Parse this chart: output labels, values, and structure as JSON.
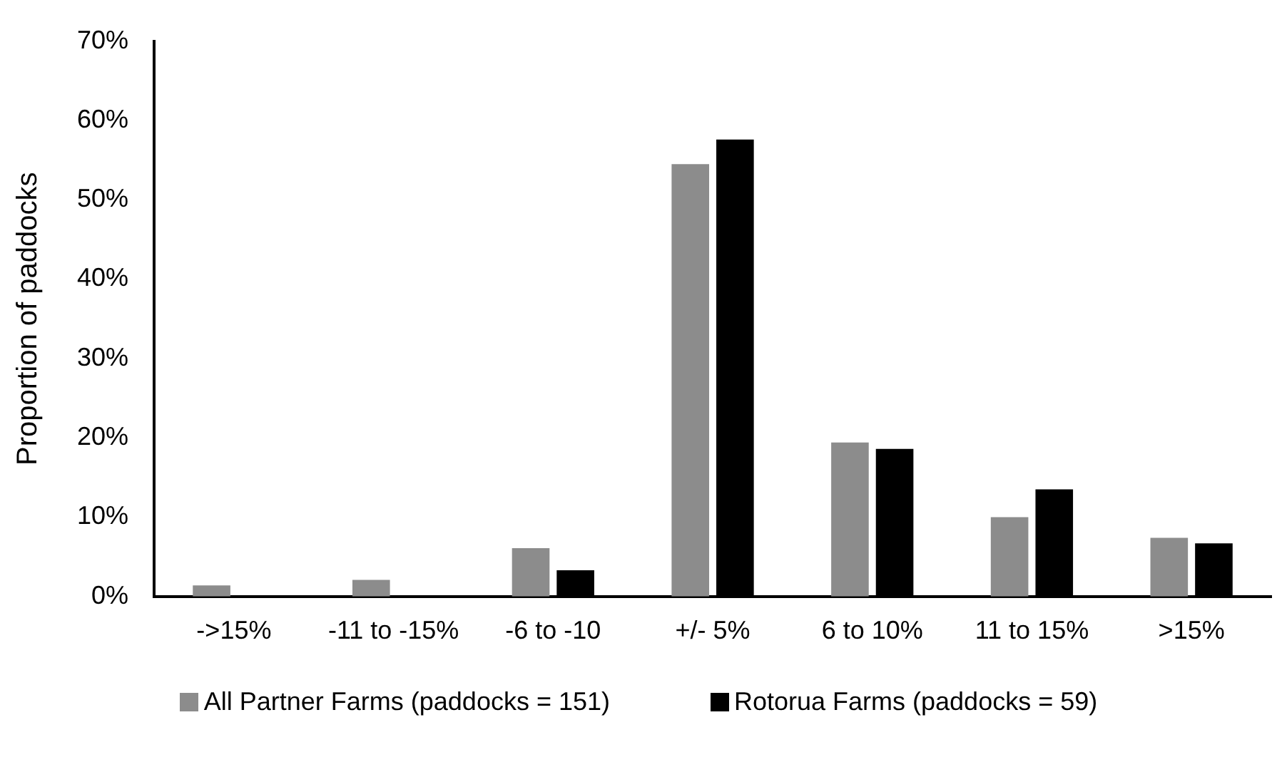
{
  "chart_data": {
    "type": "bar",
    "ylabel": "Proportion of paddocks",
    "categories": [
      "->15%",
      "-11 to -15%",
      "-6 to -10",
      "+/- 5%",
      "6 to 10%",
      "11 to 15%",
      ">15%"
    ],
    "series": [
      {
        "name": "All Partner Farms (paddocks = 151)",
        "color": "#8c8c8c",
        "values": [
          1.4,
          2.1,
          6.1,
          54.5,
          19.4,
          10.0,
          7.4
        ]
      },
      {
        "name": "Rotorua Farms (paddocks = 59)",
        "color": "#000000",
        "values": [
          null,
          null,
          3.3,
          57.6,
          18.6,
          13.5,
          6.7
        ]
      }
    ],
    "ylim": [
      0,
      70
    ],
    "yticks": [
      {
        "value": 0,
        "label": "0%"
      },
      {
        "value": 10,
        "label": "10%"
      },
      {
        "value": 20,
        "label": "20%"
      },
      {
        "value": 30,
        "label": "30%"
      },
      {
        "value": 40,
        "label": "40%"
      },
      {
        "value": 50,
        "label": "50%"
      },
      {
        "value": 60,
        "label": "60%"
      },
      {
        "value": 70,
        "label": "70%"
      }
    ],
    "grid": false,
    "legend": "bottom"
  }
}
